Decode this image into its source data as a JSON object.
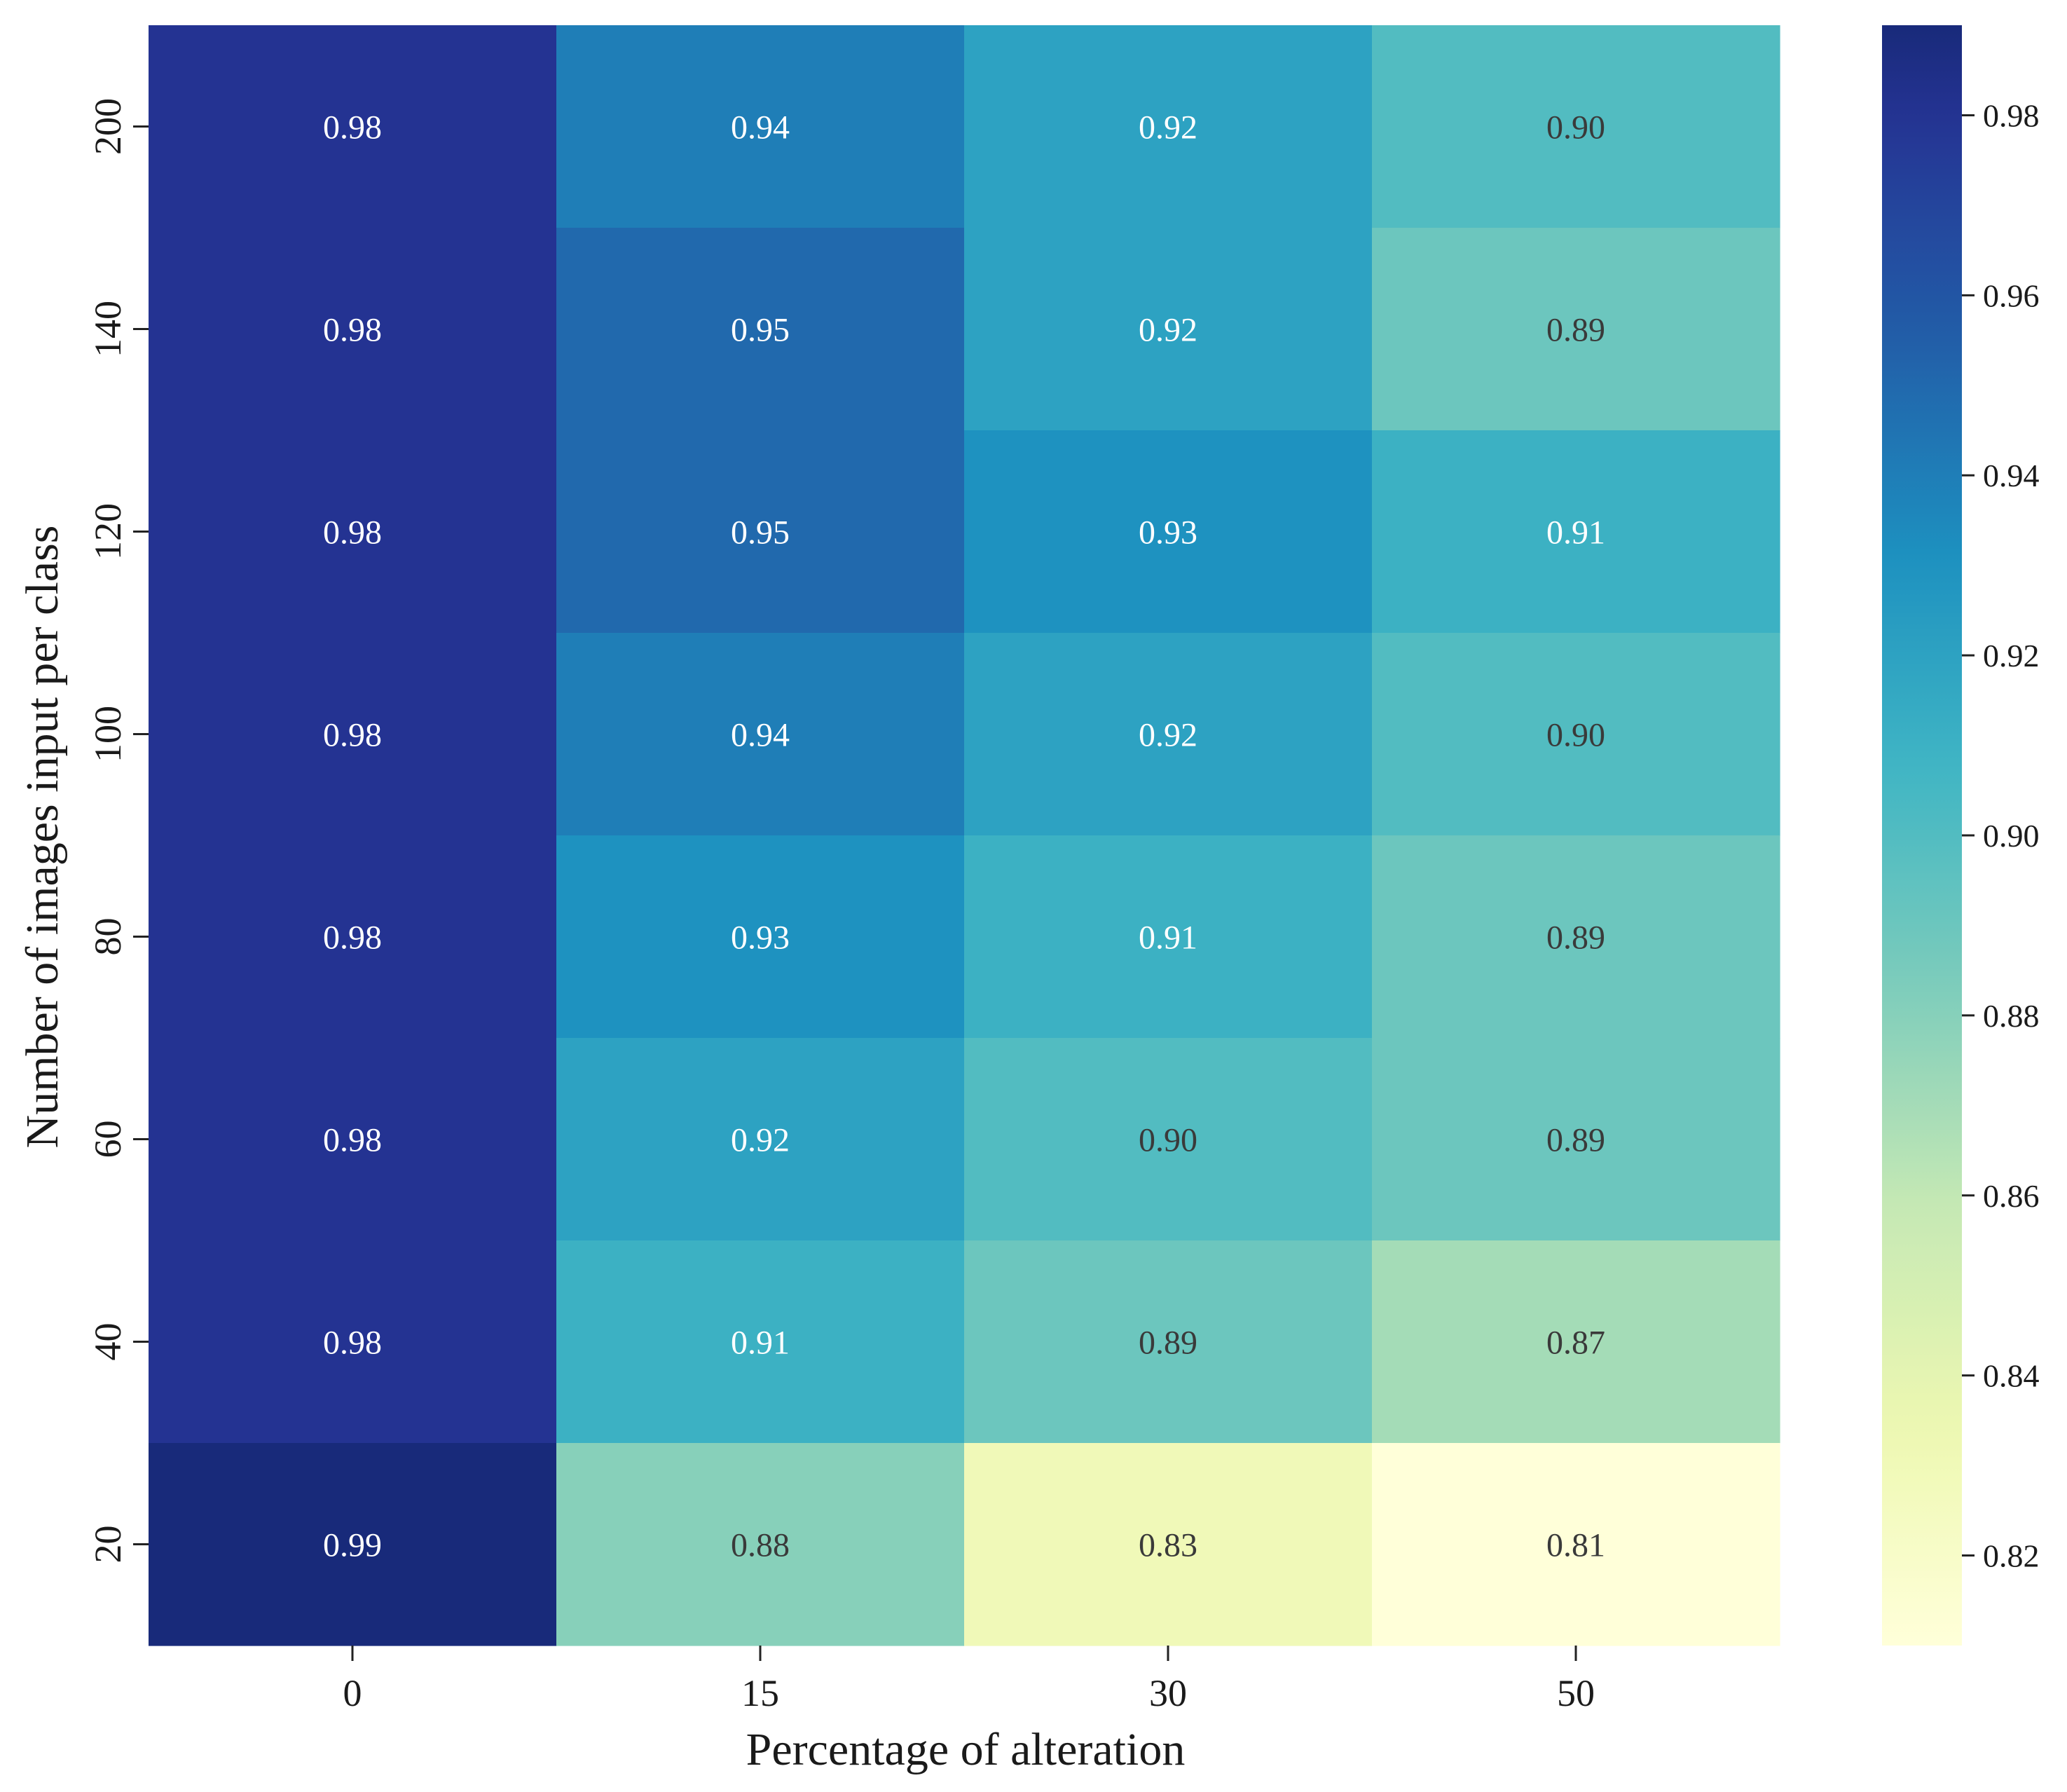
{
  "chart_data": {
    "type": "heatmap",
    "title": "",
    "xlabel": "Percentage of alteration",
    "ylabel": "Number of images input per class",
    "x_categories": [
      "0",
      "15",
      "30",
      "50"
    ],
    "y_categories": [
      "200",
      "140",
      "120",
      "100",
      "80",
      "60",
      "40",
      "20"
    ],
    "values": [
      [
        0.98,
        0.94,
        0.92,
        0.9
      ],
      [
        0.98,
        0.95,
        0.92,
        0.89
      ],
      [
        0.98,
        0.95,
        0.93,
        0.91
      ],
      [
        0.98,
        0.94,
        0.92,
        0.9
      ],
      [
        0.98,
        0.93,
        0.91,
        0.89
      ],
      [
        0.98,
        0.92,
        0.9,
        0.89
      ],
      [
        0.98,
        0.91,
        0.89,
        0.87
      ],
      [
        0.99,
        0.88,
        0.83,
        0.81
      ]
    ],
    "value_format_decimals": 2,
    "colormap": "YlGnBu",
    "colorbar": {
      "min": 0.81,
      "max": 0.99,
      "ticks": [
        "0.82",
        "0.84",
        "0.86",
        "0.88",
        "0.90",
        "0.92",
        "0.94",
        "0.96",
        "0.98"
      ]
    },
    "grid": false,
    "legend": "colorbar-right"
  }
}
